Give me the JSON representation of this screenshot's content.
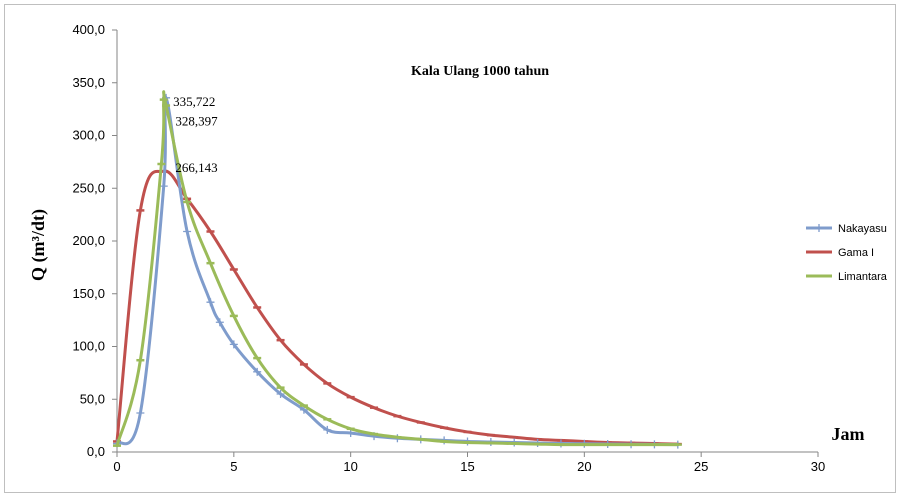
{
  "chart_data": {
    "type": "line",
    "title": "Kala Ulang 1000 tahun",
    "xlabel": "Jam",
    "ylabel": "Q (m³/dt)",
    "xlim": [
      0,
      30
    ],
    "ylim": [
      0,
      400
    ],
    "x_ticks": [
      "0",
      "5",
      "10",
      "15",
      "20",
      "25",
      "30"
    ],
    "y_ticks": [
      "0,0",
      "50,0",
      "100,0",
      "150,0",
      "200,0",
      "250,0",
      "300,0",
      "350,0",
      "400,0"
    ],
    "legend_position": "right",
    "grid": false,
    "series": [
      {
        "name": "Nakayasu",
        "color": "#7f9ccc",
        "marker": "plus",
        "x": [
          0,
          1,
          2,
          2.1,
          3,
          4,
          4.4,
          5,
          6,
          7,
          8,
          9,
          10,
          11,
          12,
          13,
          14,
          15,
          16,
          17,
          18,
          19,
          20,
          21,
          22,
          23,
          24
        ],
        "y": [
          8,
          37,
          252,
          335.722,
          209,
          142,
          123,
          102,
          76,
          55,
          40,
          21,
          18,
          15,
          13,
          12,
          11,
          10,
          9.5,
          9,
          8.5,
          8,
          7.8,
          7.6,
          7.4,
          7.2,
          7
        ]
      },
      {
        "name": "Gama I",
        "color": "#c0504d",
        "marker": "dash",
        "x": [
          0,
          1,
          2,
          3,
          4,
          5,
          6,
          7,
          8,
          9,
          10,
          11,
          12,
          13,
          14,
          15,
          16,
          17,
          18,
          19,
          20,
          21,
          22,
          23,
          24
        ],
        "y": [
          10,
          229,
          266.143,
          240,
          209,
          173,
          137,
          106,
          83,
          65,
          52,
          42,
          34,
          28,
          23,
          19,
          16,
          14,
          12,
          11,
          10,
          9,
          8.5,
          8,
          7.5
        ]
      },
      {
        "name": "Limantara",
        "color": "#9bbb59",
        "marker": "dash",
        "x": [
          0,
          1,
          1.9,
          2,
          2.1,
          3,
          4,
          5,
          6,
          7,
          8,
          9,
          10,
          11,
          12,
          13,
          14,
          15,
          16,
          17,
          18,
          19,
          20,
          21,
          22,
          23,
          24
        ],
        "y": [
          6,
          87,
          273,
          334,
          328.397,
          237,
          179,
          129,
          89,
          61,
          44,
          31,
          22,
          17,
          14,
          12,
          10,
          9,
          8.5,
          8,
          7.5,
          7,
          7,
          7,
          7,
          7,
          7
        ]
      }
    ],
    "annotations": [
      "335,722",
      "328,397",
      "266,143"
    ]
  }
}
